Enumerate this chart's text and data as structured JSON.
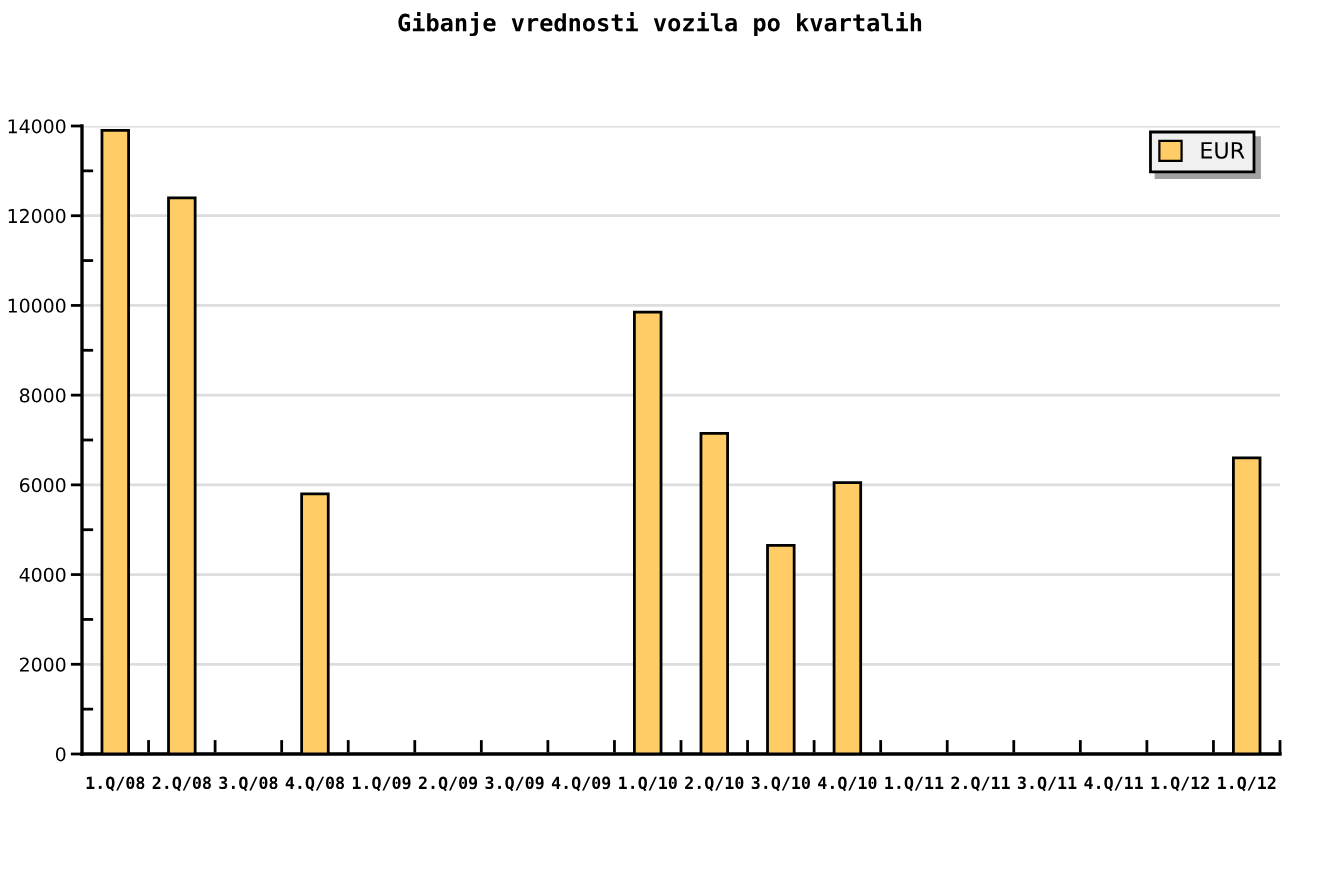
{
  "chart_data": {
    "type": "bar",
    "title": "Gibanje vrednosti vozila po kvartalih",
    "categories": [
      "1.Q/08",
      "2.Q/08",
      "3.Q/08",
      "4.Q/08",
      "1.Q/09",
      "2.Q/09",
      "3.Q/09",
      "4.Q/09",
      "1.Q/10",
      "2.Q/10",
      "3.Q/10",
      "4.Q/10",
      "1.Q/11",
      "2.Q/11",
      "3.Q/11",
      "4.Q/11",
      "1.Q/12",
      "1.Q/12"
    ],
    "series": [
      {
        "name": "EUR",
        "color": "#ffcc66",
        "values": [
          13900,
          12400,
          null,
          5800,
          null,
          null,
          null,
          null,
          9850,
          7150,
          4650,
          6050,
          null,
          null,
          null,
          null,
          null,
          6600
        ]
      }
    ],
    "ylim": [
      0,
      14000
    ],
    "yticks": [
      0,
      {
        "value": 1000,
        "label": null
      },
      2000,
      {
        "value": 3000,
        "label": null
      },
      4000,
      {
        "value": 5000,
        "label": null
      },
      6000,
      {
        "value": 7000,
        "label": null
      },
      8000,
      {
        "value": 9000,
        "label": null
      },
      10000,
      {
        "value": 11000,
        "label": null
      },
      12000,
      {
        "value": 13000,
        "label": null
      },
      14000
    ],
    "grid": "y",
    "legend": "top right"
  }
}
